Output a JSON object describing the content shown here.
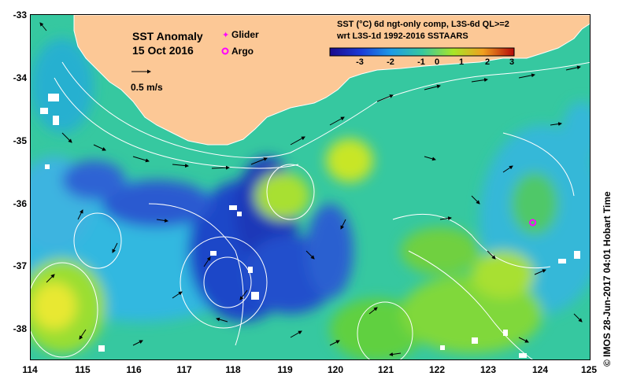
{
  "map": {
    "title": "SST Anomaly",
    "date": "15 Oct 2016",
    "scale_label": "0.5 m/s",
    "legend": {
      "glider_label": "Glider",
      "argo_label": "Argo"
    },
    "colorbar": {
      "title_line1": "SST (°C) 6d ngt-only comp, L3S-6d QL>=2",
      "title_line2": "wrt L3S-1d 1992-2016 SSTAARS",
      "ticks": [
        "-3",
        "-2",
        "-1",
        "0",
        "1",
        "2",
        "3"
      ],
      "range": [
        -3,
        3
      ]
    },
    "credit": "© IMOS 28-Jun-2017 04:01 Hobart Time",
    "lat_ticks": [
      "-33",
      "-34",
      "-35",
      "-36",
      "-37",
      "-38"
    ],
    "lon_ticks": [
      "114",
      "115",
      "116",
      "117",
      "118",
      "119",
      "120",
      "121",
      "122",
      "123",
      "124",
      "125"
    ],
    "lat_range": [
      -38.5,
      -33
    ],
    "lon_range": [
      114,
      125
    ],
    "colors": {
      "land": "#fcc896",
      "ocean_base": "#36c8a0",
      "negative_anomaly": "#1a3cc8",
      "positive_anomaly": "#a8e628",
      "marker": "#ff00ff"
    },
    "argo_floats": [
      {
        "lon": 123.85,
        "lat": -36.3
      }
    ]
  }
}
